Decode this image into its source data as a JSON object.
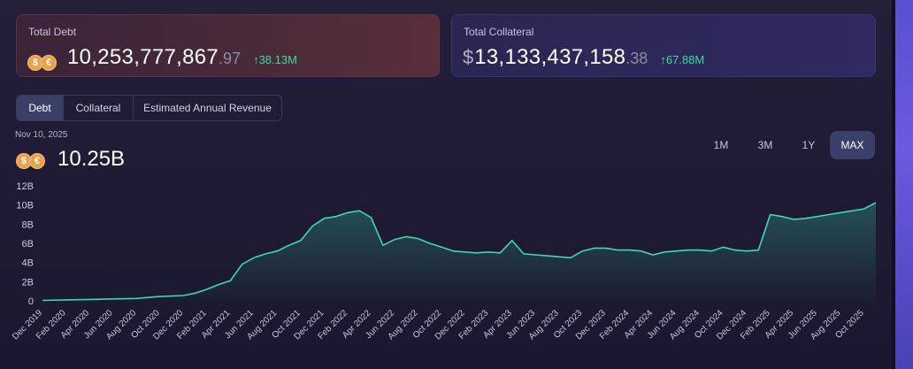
{
  "colors": {
    "accent_up": "#3ddc97",
    "line": "#3fd8b4",
    "active_tab": "#3a3f66"
  },
  "debt_card": {
    "label": "Total Debt",
    "value_main": "10,253,777,867",
    "value_cents": ".97",
    "delta": "↑38.13M",
    "icons": [
      "dollar-coin-icon",
      "stablecoin-icon"
    ]
  },
  "collateral_card": {
    "label": "Total Collateral",
    "currency": "$",
    "value_main": "13,133,437,158",
    "value_cents": ".38",
    "delta": "↑67.88M"
  },
  "tabs": [
    {
      "label": "Debt",
      "active": true
    },
    {
      "label": "Collateral",
      "active": false
    },
    {
      "label": "Estimated Annual Revenue",
      "active": false
    }
  ],
  "selected_date": "Nov 10, 2025",
  "selected_value": "10.25B",
  "ranges": [
    {
      "label": "1M",
      "active": false
    },
    {
      "label": "3M",
      "active": false
    },
    {
      "label": "1Y",
      "active": false
    },
    {
      "label": "MAX",
      "active": true
    }
  ],
  "chart_data": {
    "type": "area",
    "title": "",
    "xlabel": "",
    "ylabel": "",
    "ylim": [
      0,
      12
    ],
    "y_ticks": [
      "0",
      "2B",
      "4B",
      "6B",
      "8B",
      "10B",
      "12B"
    ],
    "y_tick_values": [
      0,
      2,
      4,
      6,
      8,
      10,
      12
    ],
    "x_ticks": [
      "Dec 2019",
      "Feb 2020",
      "Apr 2020",
      "Jun 2020",
      "Aug 2020",
      "Oct 2020",
      "Dec 2020",
      "Feb 2021",
      "Apr 2021",
      "Jun 2021",
      "Aug 2021",
      "Oct 2021",
      "Dec 2021",
      "Feb 2022",
      "Apr 2022",
      "Jun 2022",
      "Aug 2022",
      "Oct 2022",
      "Dec 2022",
      "Feb 2023",
      "Apr 2023",
      "Jun 2023",
      "Aug 2023",
      "Oct 2023",
      "Dec 2023",
      "Feb 2024",
      "Apr 2024",
      "Jun 2024",
      "Aug 2024",
      "Oct 2024",
      "Dec 2024",
      "Feb 2025",
      "Apr 2025",
      "Jun 2025",
      "Aug 2025",
      "Oct 2025"
    ],
    "series": [
      {
        "x": [
          "2019-12",
          "2020-02",
          "2020-04",
          "2020-06",
          "2020-08",
          "2020-10",
          "2020-12",
          "2021-01",
          "2021-02",
          "2021-03",
          "2021-04",
          "2021-05",
          "2021-06",
          "2021-07",
          "2021-08",
          "2021-09",
          "2021-10",
          "2021-11",
          "2021-12",
          "2022-01",
          "2022-02",
          "2022-03",
          "2022-04",
          "2022-05",
          "2022-06",
          "2022-07",
          "2022-08",
          "2022-09",
          "2022-10",
          "2022-11",
          "2022-12",
          "2023-01",
          "2023-02",
          "2023-03",
          "2023-04",
          "2023-05",
          "2023-06",
          "2023-07",
          "2023-08",
          "2023-09",
          "2023-10",
          "2023-11",
          "2023-12",
          "2024-01",
          "2024-02",
          "2024-03",
          "2024-04",
          "2024-05",
          "2024-06",
          "2024-07",
          "2024-08",
          "2024-09",
          "2024-10",
          "2024-11",
          "2024-12",
          "2025-01",
          "2025-02",
          "2025-03",
          "2025-04",
          "2025-05",
          "2025-06",
          "2025-07",
          "2025-08",
          "2025-09",
          "2025-10",
          "2025-11"
        ],
        "y": [
          0.05,
          0.1,
          0.15,
          0.2,
          0.25,
          0.45,
          0.55,
          0.8,
          1.2,
          1.7,
          2.1,
          3.8,
          4.5,
          4.9,
          5.2,
          5.8,
          6.3,
          7.8,
          8.6,
          8.8,
          9.2,
          9.4,
          8.7,
          5.8,
          6.4,
          6.7,
          6.5,
          6.0,
          5.6,
          5.2,
          5.1,
          5.0,
          5.1,
          5.0,
          6.3,
          4.9,
          4.8,
          4.7,
          4.6,
          4.5,
          5.2,
          5.5,
          5.5,
          5.3,
          5.3,
          5.2,
          4.8,
          5.1,
          5.2,
          5.3,
          5.3,
          5.2,
          5.6,
          5.3,
          5.2,
          5.3,
          9.0,
          8.8,
          8.5,
          8.6,
          8.8,
          9.0,
          9.2,
          9.4,
          9.6,
          10.25
        ]
      }
    ],
    "grid": false,
    "legend": "none"
  }
}
